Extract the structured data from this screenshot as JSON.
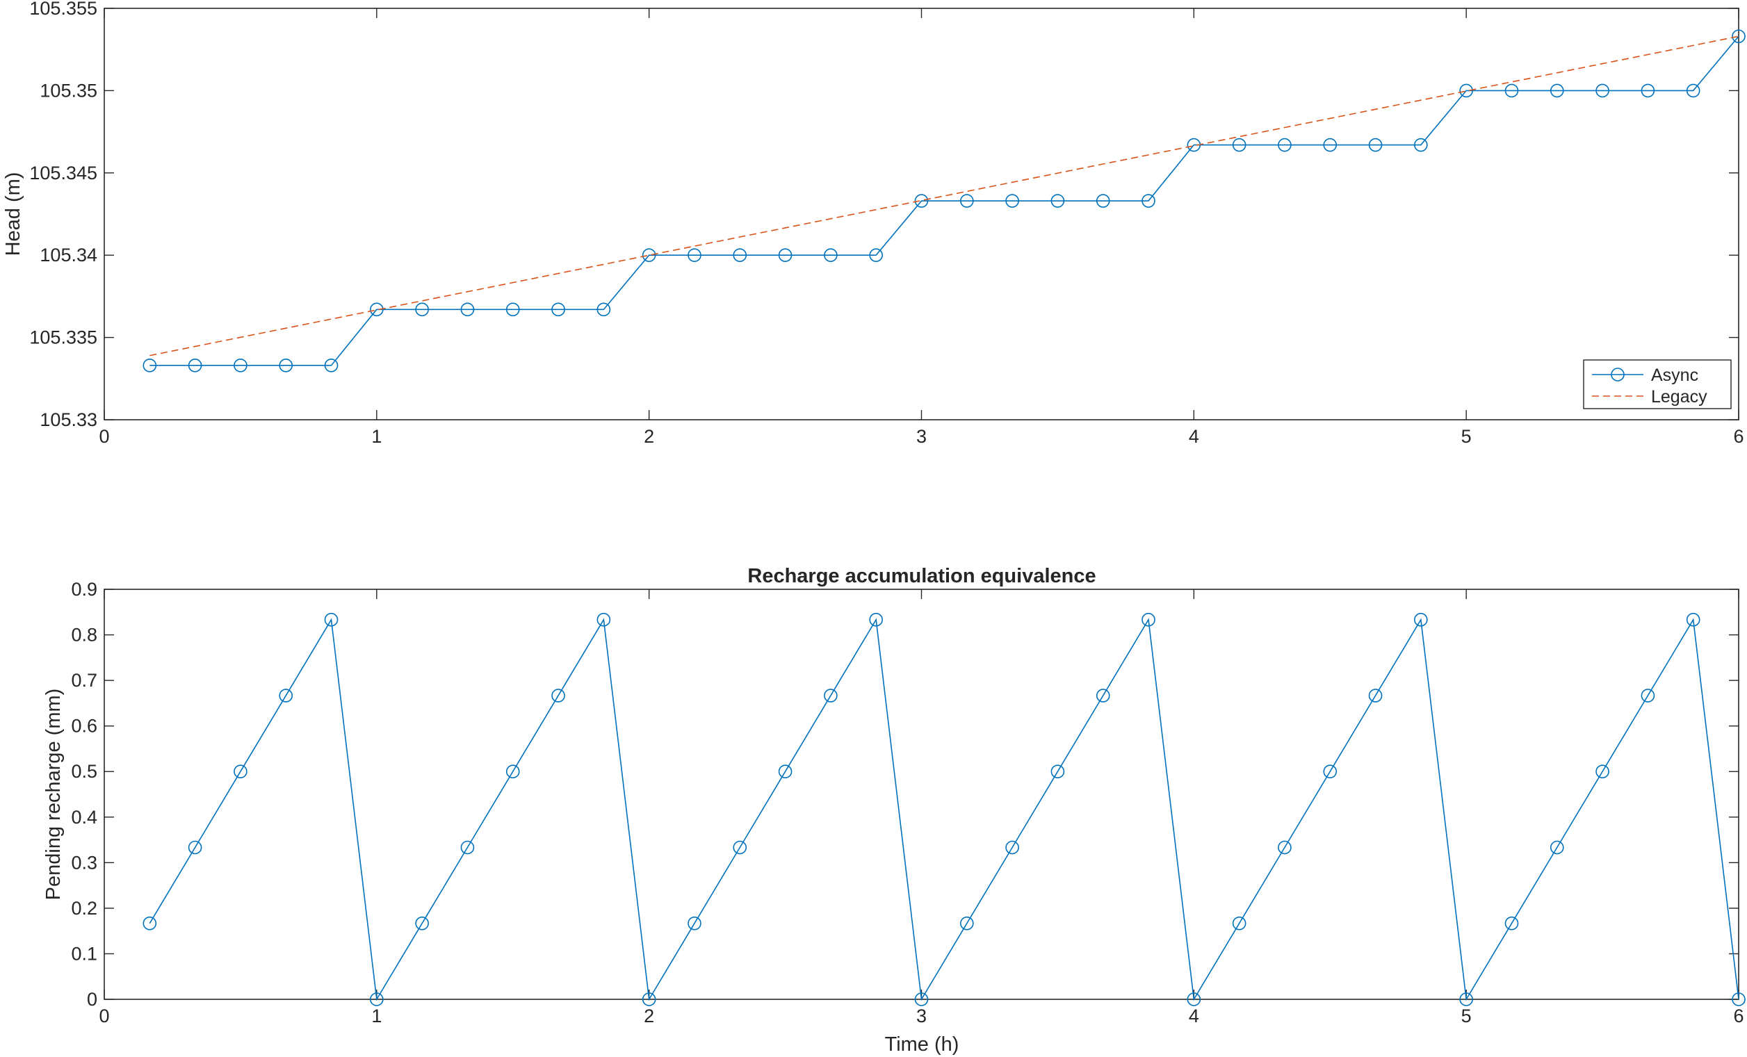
{
  "chart_data": [
    {
      "type": "line",
      "title": "",
      "xlabel": "",
      "ylabel": "Head (m)",
      "xlim": [
        0,
        6
      ],
      "ylim": [
        105.33,
        105.355
      ],
      "xticks": [
        "0",
        "1",
        "2",
        "3",
        "4",
        "5",
        "6"
      ],
      "yticks": [
        "105.33",
        "105.335",
        "105.34",
        "105.345",
        "105.35",
        "105.355"
      ],
      "grid": false,
      "legend": "bottom-right",
      "series": [
        {
          "name": "Async",
          "color": "#0072bd",
          "style": "solid",
          "marker": "circle",
          "x": [
            0.1667,
            0.3333,
            0.5,
            0.6667,
            0.8333,
            1.0,
            1.1667,
            1.3333,
            1.5,
            1.6667,
            1.8333,
            2.0,
            2.1667,
            2.3333,
            2.5,
            2.6667,
            2.8333,
            3.0,
            3.1667,
            3.3333,
            3.5,
            3.6667,
            3.8333,
            4.0,
            4.1667,
            4.3333,
            4.5,
            4.6667,
            4.8333,
            5.0,
            5.1667,
            5.3333,
            5.5,
            5.6667,
            5.8333,
            6.0
          ],
          "y": [
            105.3333,
            105.3333,
            105.3333,
            105.3333,
            105.3333,
            105.3367,
            105.3367,
            105.3367,
            105.3367,
            105.3367,
            105.3367,
            105.34,
            105.34,
            105.34,
            105.34,
            105.34,
            105.34,
            105.3433,
            105.3433,
            105.3433,
            105.3433,
            105.3433,
            105.3433,
            105.3467,
            105.3467,
            105.3467,
            105.3467,
            105.3467,
            105.3467,
            105.35,
            105.35,
            105.35,
            105.35,
            105.35,
            105.35,
            105.3533
          ]
        },
        {
          "name": "Legacy",
          "color": "#d95319",
          "style": "dashed",
          "marker": "none",
          "x": [
            0.1667,
            6.0
          ],
          "y": [
            105.3339,
            105.3533
          ]
        }
      ]
    },
    {
      "type": "line",
      "title": "Recharge accumulation equivalence",
      "xlabel": "Time (h)",
      "ylabel": "Pending recharge (mm)",
      "xlim": [
        0,
        6
      ],
      "ylim": [
        0,
        0.9
      ],
      "xticks": [
        "0",
        "1",
        "2",
        "3",
        "4",
        "5",
        "6"
      ],
      "yticks": [
        "0",
        "0.1",
        "0.2",
        "0.3",
        "0.4",
        "0.5",
        "0.6",
        "0.7",
        "0.8",
        "0.9"
      ],
      "grid": false,
      "series": [
        {
          "color": "#0072bd",
          "style": "solid",
          "marker": "circle",
          "x": [
            0.1667,
            0.3333,
            0.5,
            0.6667,
            0.8333,
            1.0,
            1.1667,
            1.3333,
            1.5,
            1.6667,
            1.8333,
            2.0,
            2.1667,
            2.3333,
            2.5,
            2.6667,
            2.8333,
            3.0,
            3.1667,
            3.3333,
            3.5,
            3.6667,
            3.8333,
            4.0,
            4.1667,
            4.3333,
            4.5,
            4.6667,
            4.8333,
            5.0,
            5.1667,
            5.3333,
            5.5,
            5.6667,
            5.8333,
            6.0
          ],
          "y": [
            0.1667,
            0.3333,
            0.5,
            0.6667,
            0.8333,
            0,
            0.1667,
            0.3333,
            0.5,
            0.6667,
            0.8333,
            0,
            0.1667,
            0.3333,
            0.5,
            0.6667,
            0.8333,
            0,
            0.1667,
            0.3333,
            0.5,
            0.6667,
            0.8333,
            0,
            0.1667,
            0.3333,
            0.5,
            0.6667,
            0.8333,
            0,
            0.1667,
            0.3333,
            0.5,
            0.6667,
            0.8333,
            0
          ]
        }
      ]
    }
  ]
}
